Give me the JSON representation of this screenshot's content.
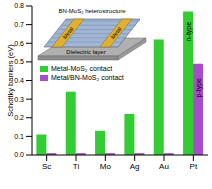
{
  "chart_data": {
    "type": "bar",
    "y_label": "Schottky barriers (eV)",
    "categories": [
      "Sc",
      "Ti",
      "Mo",
      "Ag",
      "Au",
      "Pt"
    ],
    "series": [
      {
        "name": "Metal-MoS₂ contact",
        "color": "#33cc33",
        "values": [
          0.11,
          0.34,
          0.13,
          0.22,
          0.62,
          0.77
        ]
      },
      {
        "name": "Metal/BN-MoS₂ contact",
        "color": "#a64dcc",
        "values": [
          0.01,
          0.01,
          0.01,
          0.01,
          0.01,
          0.49
        ]
      }
    ],
    "ylim": [
      0,
      0.8
    ],
    "yticks": [
      {
        "value": 0,
        "label": "0.0"
      },
      0.1,
      0.2,
      0.3,
      0.4,
      0.5,
      0.6,
      0.7,
      0.8
    ],
    "legend": "upper left",
    "grid": false,
    "annotations": [
      "n-type",
      "p-type"
    ],
    "inset": {
      "title": "BN-MoS₂ heterostructure",
      "labels": [
        "Metal",
        "Metal",
        "Dielectric layer"
      ]
    }
  }
}
